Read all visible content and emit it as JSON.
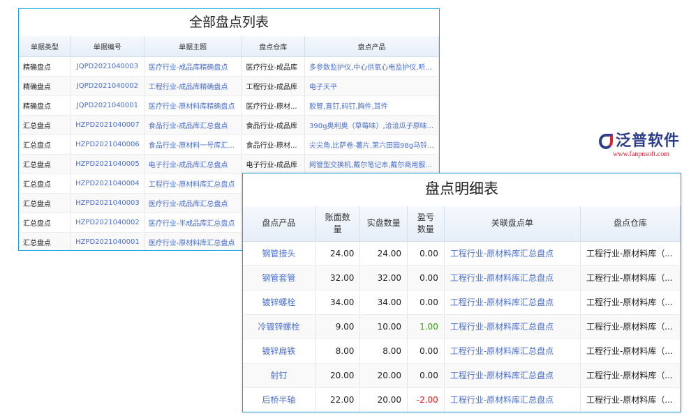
{
  "list_panel": {
    "title": "全部盘点列表",
    "columns": [
      "单据类型",
      "单据编号",
      "单据主题",
      "盘点仓库",
      "盘点产品"
    ],
    "rows": [
      [
        "精确盘点",
        "JQPD2021040003",
        "医疗行业-成品库精确盘点",
        "医疗行业-成品库",
        "多参数监护仪,中心供氧心电监护仪,听..."
      ],
      [
        "精确盘点",
        "JQPD2021040002",
        "工程行业-成品库精确盘点",
        "工程行业-成品库",
        "电子天平"
      ],
      [
        "精确盘点",
        "JQPD2021040001",
        "医疗行业-原材料库精确盘点",
        "医疗行业-原材...",
        "胶管,直钉,码钉,胸件,耳件"
      ],
      [
        "汇总盘点",
        "HZPD2021040007",
        "食品行业-成品库汇总盘点",
        "食品行业-成品库",
        "390g奥利奥（草莓味）,洽洽瓜子原味..."
      ],
      [
        "汇总盘点",
        "HZPD2021040006",
        "食品行业-原材料一号库汇...",
        "食品行业-原材...",
        "尖尖角,比萨卷-薯片,第六田园98g马铃..."
      ],
      [
        "汇总盘点",
        "HZPD2021040005",
        "电子行业-成品库汇总盘点",
        "电子行业-成品库",
        "网管型交换机,戴尔笔记本,戴尔商用服..."
      ],
      [
        "汇总盘点",
        "HZPD2021040004",
        "工程行业-原材料库汇总盘点",
        "",
        ""
      ],
      [
        "汇总盘点",
        "HZPD2021040003",
        "医疗行业-成品库汇总盘点",
        "",
        ""
      ],
      [
        "汇总盘点",
        "HZPD2021040002",
        "医疗行业-半成品库汇总盘点",
        "",
        ""
      ],
      [
        "汇总盘点",
        "HZPD2021040001",
        "医疗行业-原材料库汇总盘点",
        "",
        ""
      ]
    ]
  },
  "detail_panel": {
    "title": "盘点明细表",
    "columns": [
      "盘点产品",
      "账面数量",
      "实盘数量",
      "盈亏数量",
      "关联盘点单",
      "盘点仓库"
    ],
    "rows": [
      [
        "钢管接头",
        "24.00",
        "24.00",
        "0.00",
        "工程行业-原材料库汇总盘点",
        "工程行业-原材料库（..."
      ],
      [
        "钢管套管",
        "32.00",
        "32.00",
        "0.00",
        "工程行业-原材料库汇总盘点",
        "工程行业-原材料库（..."
      ],
      [
        "镀锌螺栓",
        "34.00",
        "34.00",
        "0.00",
        "工程行业-原材料库汇总盘点",
        "工程行业-原材料库（..."
      ],
      [
        "冷镀锌螺栓",
        "9.00",
        "10.00",
        "1.00",
        "工程行业-原材料库汇总盘点",
        "工程行业-原材料库（..."
      ],
      [
        "镀锌扁铁",
        "8.00",
        "8.00",
        "0.00",
        "工程行业-原材料库汇总盘点",
        "工程行业-原材料库（..."
      ],
      [
        "射钉",
        "20.00",
        "20.00",
        "0.00",
        "工程行业-原材料库汇总盘点",
        "工程行业-原材料库（..."
      ],
      [
        "后桥半轴",
        "22.00",
        "20.00",
        "-2.00",
        "工程行业-原材料库汇总盘点",
        "工程行业-原材料库（..."
      ]
    ]
  },
  "watermark": {
    "brand": "泛普软件",
    "url": "www.fanpusoft.com"
  },
  "colors": {
    "border": "#1aa3e0",
    "link": "#4a6fd0",
    "positive": "#3a9a14",
    "negative": "#e8201c"
  }
}
